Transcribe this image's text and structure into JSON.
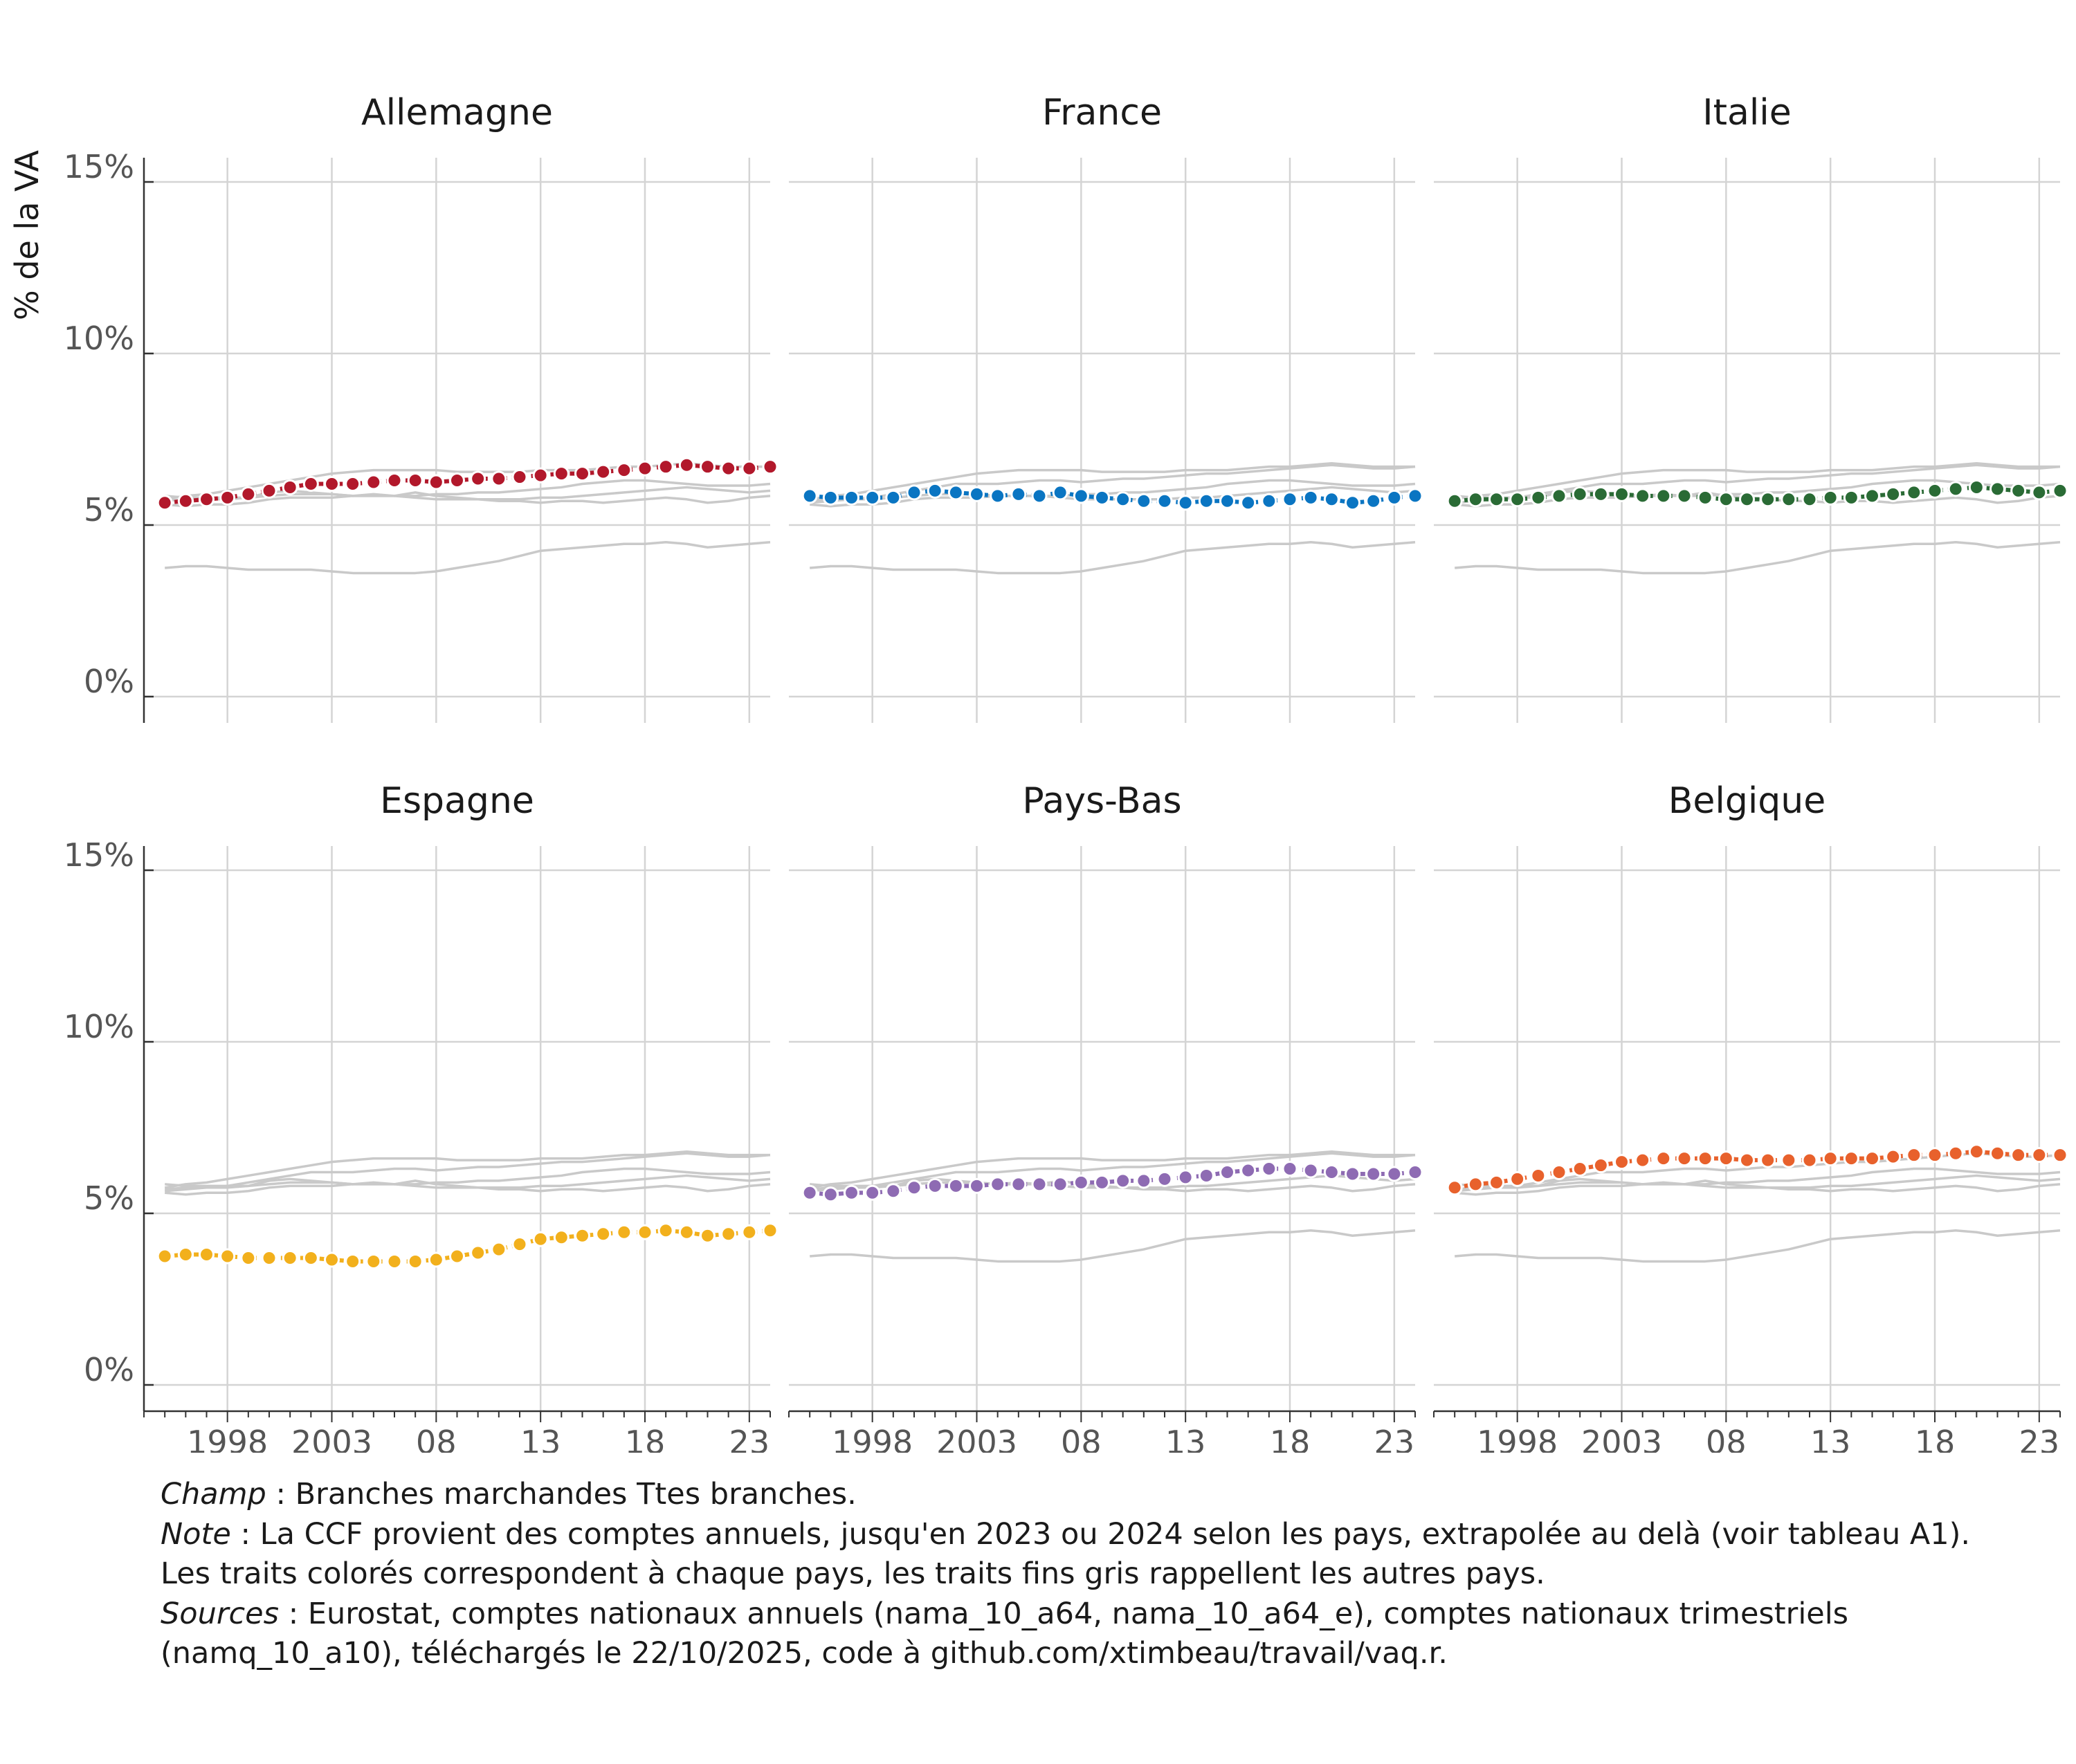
{
  "chart_data": {
    "type": "line",
    "ylabel": "% de la VA",
    "ylim": [
      0,
      15
    ],
    "y_ticks": [
      0,
      5,
      10,
      15
    ],
    "y_tick_labels": [
      "0%",
      "5%",
      "10%",
      "15%"
    ],
    "xlim": [
      1994,
      2024
    ],
    "x_ticks": [
      1998,
      2003,
      2008,
      2013,
      2018,
      2023
    ],
    "x_tick_labels": [
      "1998",
      "2003",
      "08",
      "13",
      "18",
      "23"
    ],
    "grid": true,
    "layout": "facets 3 columns x 2 rows",
    "x": [
      1995,
      1996,
      1997,
      1998,
      1999,
      2000,
      2001,
      2002,
      2003,
      2004,
      2005,
      2006,
      2007,
      2008,
      2009,
      2010,
      2011,
      2012,
      2013,
      2014,
      2015,
      2016,
      2017,
      2018,
      2019,
      2020,
      2021,
      2022,
      2023,
      2024
    ],
    "series": [
      {
        "name": "Allemagne",
        "color": "#b2182b",
        "values": [
          5.65,
          5.7,
          5.75,
          5.8,
          5.9,
          6.0,
          6.1,
          6.2,
          6.2,
          6.2,
          6.25,
          6.3,
          6.3,
          6.25,
          6.3,
          6.35,
          6.35,
          6.4,
          6.45,
          6.5,
          6.5,
          6.55,
          6.6,
          6.65,
          6.7,
          6.75,
          6.7,
          6.65,
          6.65,
          6.7
        ]
      },
      {
        "name": "France",
        "color": "#0a75c2",
        "values": [
          5.85,
          5.8,
          5.8,
          5.8,
          5.8,
          5.95,
          6.0,
          5.95,
          5.9,
          5.85,
          5.9,
          5.85,
          5.95,
          5.85,
          5.8,
          5.75,
          5.7,
          5.7,
          5.65,
          5.7,
          5.7,
          5.65,
          5.7,
          5.75,
          5.8,
          5.75,
          5.65,
          5.7,
          5.8,
          5.85
        ]
      },
      {
        "name": "Italie",
        "color": "#2a6b35",
        "values": [
          5.7,
          5.75,
          5.75,
          5.75,
          5.8,
          5.85,
          5.9,
          5.9,
          5.9,
          5.85,
          5.85,
          5.85,
          5.8,
          5.75,
          5.75,
          5.75,
          5.75,
          5.75,
          5.8,
          5.8,
          5.85,
          5.9,
          5.95,
          6.0,
          6.05,
          6.1,
          6.05,
          6.0,
          5.95,
          6.0
        ]
      },
      {
        "name": "Espagne",
        "color": "#f2b01c",
        "values": [
          3.75,
          3.8,
          3.8,
          3.75,
          3.7,
          3.7,
          3.7,
          3.7,
          3.65,
          3.6,
          3.6,
          3.6,
          3.6,
          3.65,
          3.75,
          3.85,
          3.95,
          4.1,
          4.25,
          4.3,
          4.35,
          4.4,
          4.45,
          4.45,
          4.5,
          4.45,
          4.35,
          4.4,
          4.45,
          4.5
        ]
      },
      {
        "name": "Pays-Bas",
        "color": "#8e6bb3",
        "values": [
          5.6,
          5.55,
          5.6,
          5.6,
          5.65,
          5.75,
          5.8,
          5.8,
          5.8,
          5.85,
          5.85,
          5.85,
          5.85,
          5.9,
          5.9,
          5.95,
          5.95,
          6.0,
          6.05,
          6.1,
          6.2,
          6.25,
          6.3,
          6.3,
          6.25,
          6.2,
          6.15,
          6.15,
          6.15,
          6.2
        ]
      },
      {
        "name": "Belgique",
        "color": "#e8612c",
        "values": [
          5.75,
          5.85,
          5.9,
          6.0,
          6.1,
          6.2,
          6.3,
          6.4,
          6.5,
          6.55,
          6.6,
          6.6,
          6.6,
          6.6,
          6.55,
          6.55,
          6.55,
          6.55,
          6.6,
          6.6,
          6.6,
          6.65,
          6.7,
          6.7,
          6.75,
          6.8,
          6.75,
          6.7,
          6.7,
          6.7
        ]
      }
    ]
  },
  "notes": {
    "champ_label": "Champ",
    "champ_text": " : Branches marchandes Ttes branches.",
    "note_label": "Note",
    "note_text": " : La CCF provient des comptes annuels, jusqu'en 2023 ou 2024 selon les pays, extrapolée au delà (voir tableau A1). Les traits colorés correspondent à chaque pays, les traits fins gris rappellent les autres pays.",
    "sources_label": "Sources",
    "sources_text": " : Eurostat, comptes nationaux annuels (nama_10_a64, nama_10_a64_e), comptes nationaux trimestriels (namq_10_a10), téléchargés le 22/10/2025, code à github.com/xtimbeau/travail/vaq.r."
  }
}
